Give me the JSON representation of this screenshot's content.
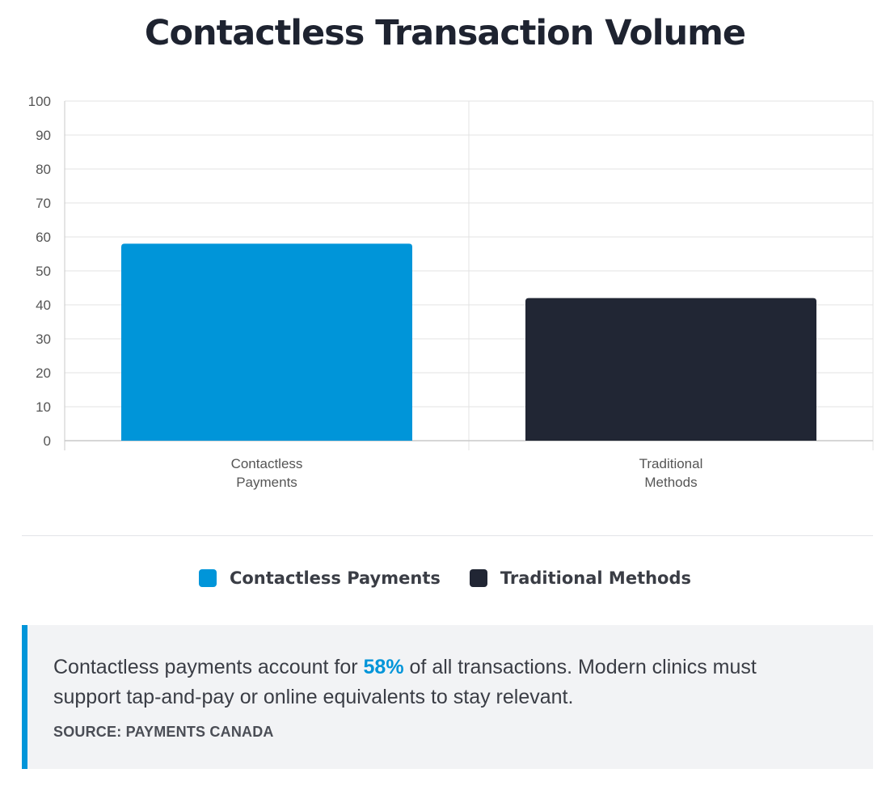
{
  "title": "Contactless Transaction Volume",
  "colors": {
    "contactless": "#0095d9",
    "traditional": "#212634",
    "grid": "#e3e3e3",
    "axis": "#c9c9c9",
    "tick_text": "#555555"
  },
  "chart_data": {
    "type": "bar",
    "categories": [
      [
        "Contactless",
        "Payments"
      ],
      [
        "Traditional",
        "Methods"
      ]
    ],
    "values": [
      58,
      42
    ],
    "bar_colors": [
      "#0095d9",
      "#212634"
    ],
    "ylim": [
      0,
      100
    ],
    "yticks": [
      0,
      10,
      20,
      30,
      40,
      50,
      60,
      70,
      80,
      90,
      100
    ],
    "grid": true,
    "legend_placement": "bottom-center"
  },
  "legend": [
    {
      "label": "Contactless Payments",
      "color": "#0095d9"
    },
    {
      "label": "Traditional Methods",
      "color": "#212634"
    }
  ],
  "callout": {
    "text_before": "Contactless payments account for ",
    "highlight": "58%",
    "text_after": " of all transactions. Modern clinics must support tap-and-pay or online equivalents to stay relevant.",
    "source": "SOURCE: PAYMENTS CANADA"
  }
}
